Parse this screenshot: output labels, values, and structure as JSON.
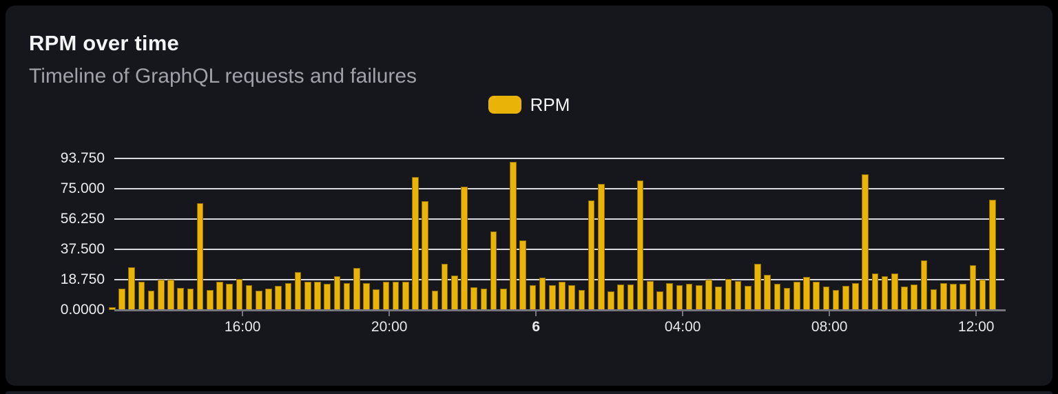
{
  "card": {
    "title": "RPM over time",
    "subtitle": "Timeline of GraphQL requests and failures"
  },
  "legend": {
    "label": "RPM",
    "swatch_color": "#eab308"
  },
  "colors": {
    "page_background": "#000000",
    "card_background": "#15171c",
    "bar": "#eab308",
    "bar_stroke": "#8a6a05",
    "gridline": "#d8dae0",
    "axis_line": "#76767f",
    "title_text": "#f4f4f5",
    "subtitle_text": "#a1a1aa",
    "tick_label_text": "#ececef"
  },
  "chart_data": {
    "type": "bar",
    "title": "RPM over time",
    "subtitle": "Timeline of GraphQL requests and failures",
    "series_name": "RPM",
    "xlabel": "",
    "ylabel": "",
    "grid": true,
    "legend_position": "top-center",
    "ylim": [
      0,
      96.5
    ],
    "y_ticks": [
      "0.0000",
      "18.750",
      "37.500",
      "56.250",
      "75.000",
      "93.750"
    ],
    "y_tick_values": [
      0,
      18.75,
      37.5,
      56.25,
      75,
      93.75
    ],
    "x_ticks": [
      {
        "label": "16:00",
        "index": 13,
        "bold": false
      },
      {
        "label": "20:00",
        "index": 28,
        "bold": false
      },
      {
        "label": "6",
        "index": 43,
        "bold": true
      },
      {
        "label": "04:00",
        "index": 58,
        "bold": false
      },
      {
        "label": "08:00",
        "index": 73,
        "bold": false
      },
      {
        "label": "12:00",
        "index": 88,
        "bold": false
      }
    ],
    "x": [
      "12:32",
      "12:48",
      "13:04",
      "13:20",
      "13:36",
      "13:52",
      "14:08",
      "14:24",
      "14:40",
      "14:56",
      "15:12",
      "15:28",
      "15:44",
      "16:00",
      "16:16",
      "16:32",
      "16:48",
      "17:04",
      "17:20",
      "17:36",
      "17:52",
      "18:08",
      "18:24",
      "18:40",
      "18:56",
      "19:12",
      "19:28",
      "19:44",
      "20:00",
      "20:16",
      "20:32",
      "20:48",
      "21:04",
      "21:20",
      "21:36",
      "21:52",
      "22:08",
      "22:24",
      "22:40",
      "22:56",
      "23:12",
      "23:28",
      "23:44",
      "00:00",
      "00:16",
      "00:32",
      "00:48",
      "01:04",
      "01:20",
      "01:36",
      "01:52",
      "02:08",
      "02:24",
      "02:40",
      "02:56",
      "03:12",
      "03:28",
      "03:44",
      "04:00",
      "04:16",
      "04:32",
      "04:48",
      "05:04",
      "05:20",
      "05:36",
      "05:52",
      "06:08",
      "06:24",
      "06:40",
      "06:56",
      "07:12",
      "07:28",
      "07:44",
      "08:00",
      "08:16",
      "08:32",
      "08:48",
      "09:04",
      "09:20",
      "09:36",
      "09:52",
      "10:08",
      "10:24",
      "10:40",
      "10:56",
      "11:12",
      "11:28",
      "11:44",
      "12:00",
      "12:16",
      "12:32"
    ],
    "values": [
      1.7,
      13.4,
      26.2,
      17.6,
      11.8,
      18.6,
      18.6,
      13.8,
      13.0,
      65.8,
      12.2,
      17.3,
      16.3,
      19.0,
      15.2,
      12.1,
      13.0,
      14.7,
      16.6,
      23.2,
      17.3,
      17.6,
      16.3,
      20.7,
      16.7,
      25.8,
      16.5,
      12.6,
      17.3,
      17.3,
      17.3,
      82.0,
      67.3,
      11.9,
      28.4,
      21.3,
      76.1,
      14.0,
      13.4,
      48.5,
      13.4,
      91.3,
      42.8,
      15.4,
      20.1,
      15.3,
      17.6,
      15.2,
      12.3,
      67.5,
      77.8,
      11.6,
      15.7,
      15.7,
      80.1,
      17.7,
      11.6,
      16.7,
      15.2,
      16.0,
      15.2,
      18.6,
      14.3,
      19.3,
      18.0,
      14.9,
      28.5,
      21.7,
      16.0,
      13.8,
      17.4,
      20.4,
      17.4,
      14.4,
      12.2,
      14.7,
      16.7,
      83.6,
      22.7,
      20.8,
      22.7,
      14.3,
      15.7,
      30.5,
      12.9,
      16.7,
      16.0,
      16.3,
      27.8,
      18.6,
      67.9
    ]
  }
}
